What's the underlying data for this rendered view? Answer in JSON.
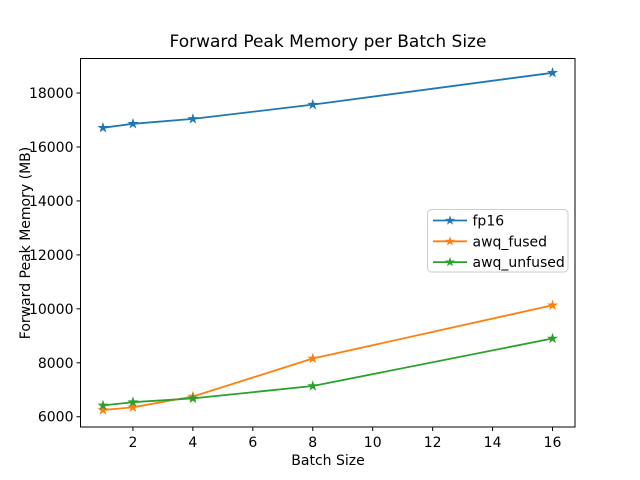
{
  "chart_data": {
    "type": "line",
    "title": "Forward Peak Memory per Batch Size",
    "xlabel": "Batch Size",
    "ylabel": "Forward Peak Memory (MB)",
    "x": [
      1,
      2,
      4,
      8,
      16
    ],
    "series": [
      {
        "name": "fp16",
        "color": "#1f77b4",
        "values": [
          16710,
          16860,
          17040,
          17570,
          18750
        ]
      },
      {
        "name": "awq_fused",
        "color": "#ff7f0e",
        "values": [
          6250,
          6350,
          6750,
          8160,
          10130
        ]
      },
      {
        "name": "awq_unfused",
        "color": "#2ca02c",
        "values": [
          6420,
          6540,
          6680,
          7140,
          8900
        ]
      }
    ],
    "xticks": [
      2,
      4,
      6,
      8,
      10,
      12,
      14,
      16
    ],
    "yticks": [
      6000,
      8000,
      10000,
      12000,
      14000,
      16000,
      18000
    ],
    "xlim": [
      0.25,
      16.75
    ],
    "ylim": [
      5620,
      19280
    ],
    "marker": "star",
    "grid": false,
    "legend_position": "center-right",
    "colors": {
      "spine": "#000000",
      "text": "#000000",
      "legend_border": "#cccccc",
      "background": "#ffffff"
    }
  }
}
